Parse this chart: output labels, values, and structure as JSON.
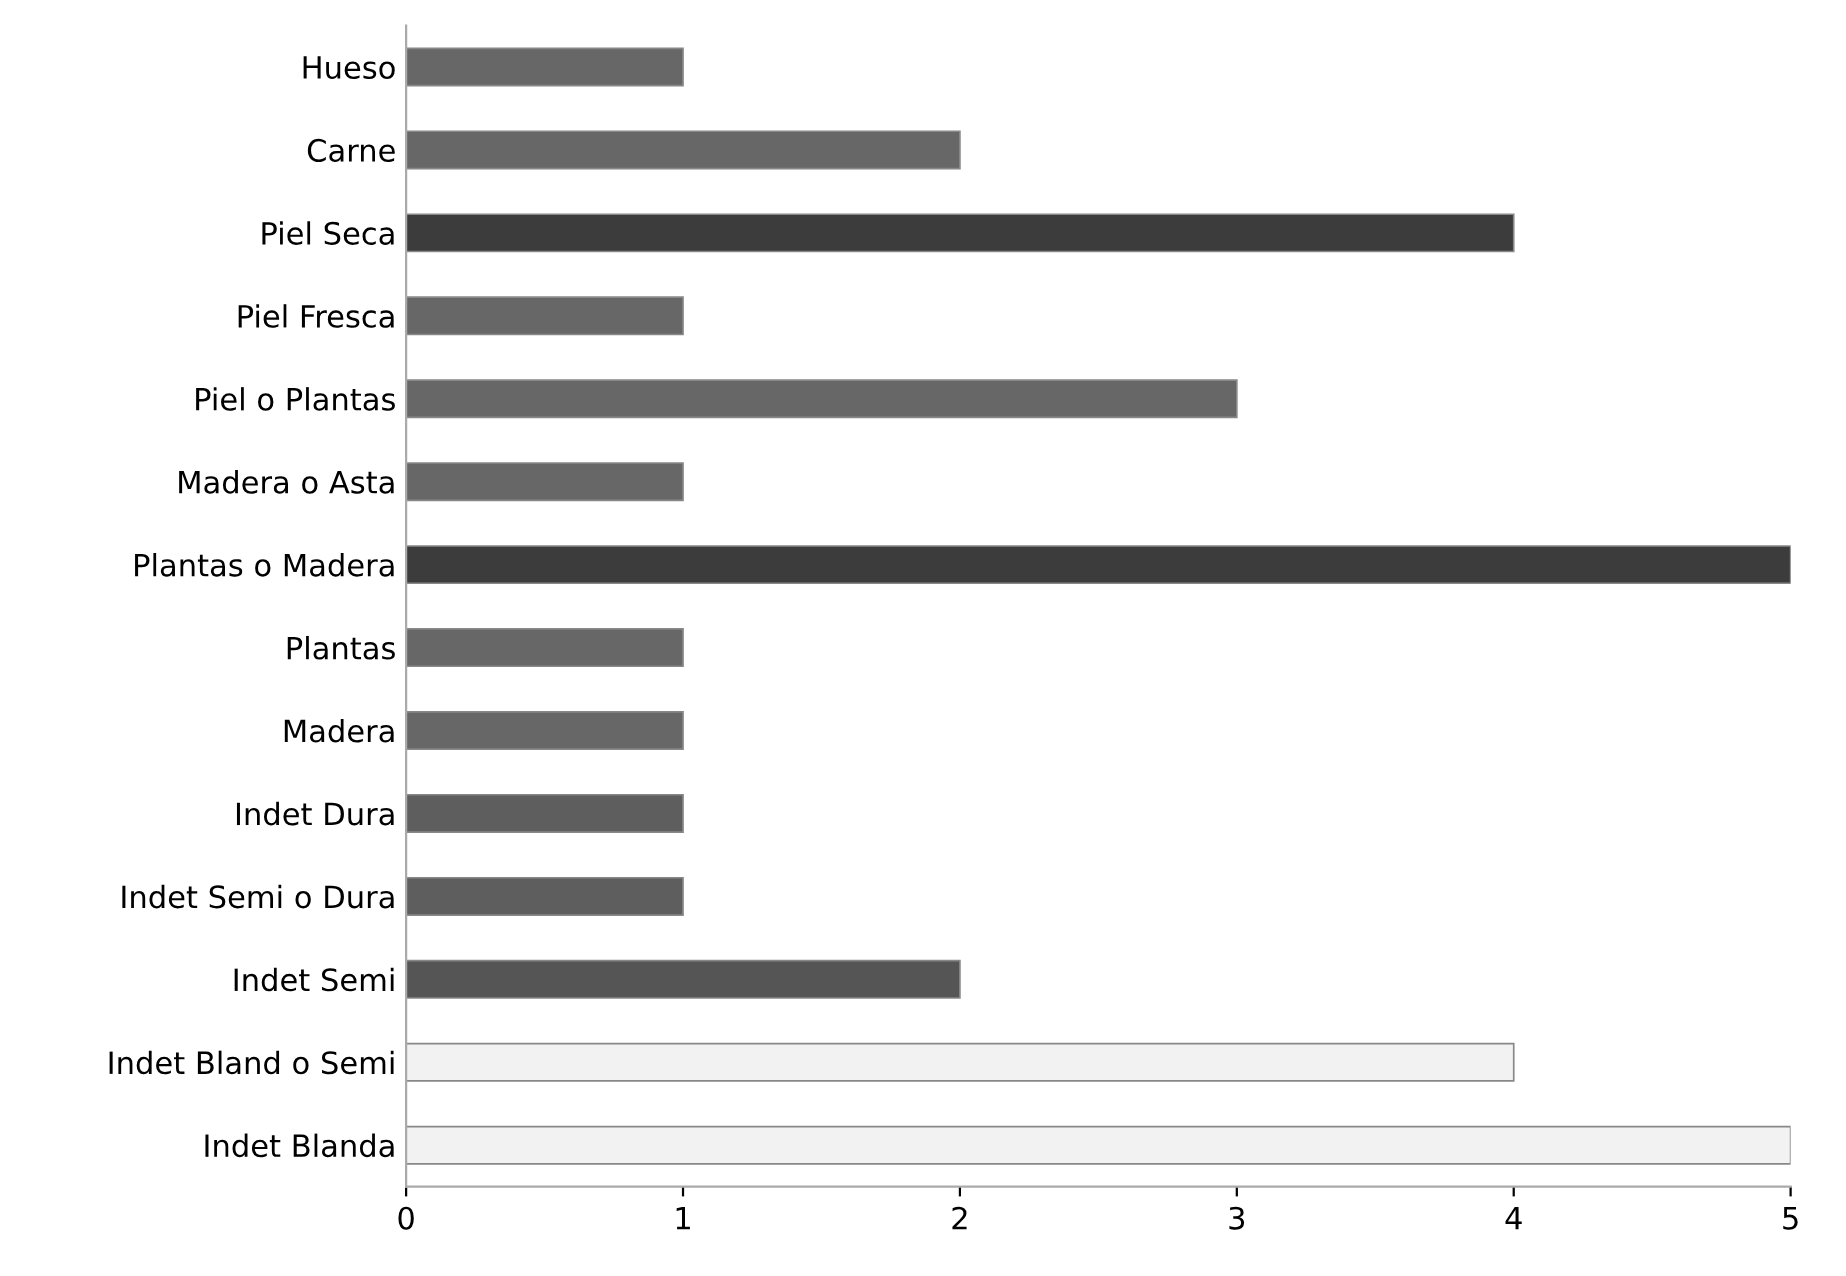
{
  "chart_data": {
    "type": "bar",
    "orientation": "horizontal",
    "categories": [
      "Hueso",
      "Carne",
      "Piel Seca",
      "Piel Fresca",
      "Piel o Plantas",
      "Madera o Asta",
      "Plantas o Madera",
      "Plantas",
      "Madera",
      "Indet Dura",
      "Indet Semi o Dura",
      "Indet Semi",
      "Indet Bland o Semi",
      "Indet Blanda"
    ],
    "values": [
      1,
      2,
      4,
      1,
      3,
      1,
      5,
      1,
      1,
      1,
      1,
      2,
      4,
      5
    ],
    "colors": [
      "#676767",
      "#676767",
      "#3c3c3c",
      "#676767",
      "#676767",
      "#676767",
      "#3c3c3c",
      "#676767",
      "#676767",
      "#5e5e5e",
      "#5e5e5e",
      "#555555",
      "#f2f2f2",
      "#f2f2f2"
    ],
    "xlim": [
      0,
      5
    ],
    "xticks": [
      0,
      1,
      2,
      3,
      4,
      5
    ],
    "grid": false,
    "legend": false
  }
}
